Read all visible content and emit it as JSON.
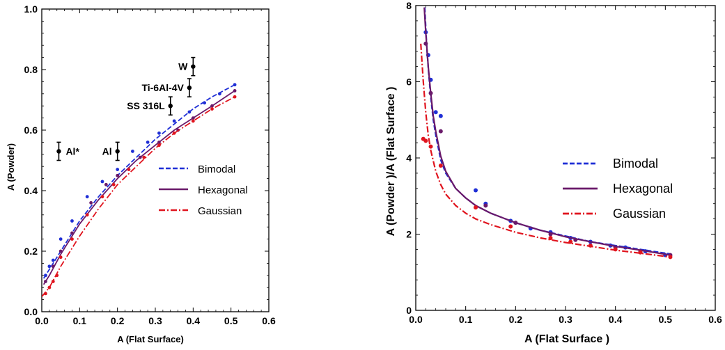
{
  "chart_data": [
    {
      "type": "scatter",
      "title": "",
      "xlabel": "A (Flat Surface)",
      "ylabel": "A (Powder)",
      "xlim": [
        0.0,
        0.6
      ],
      "ylim": [
        0.0,
        1.0
      ],
      "xticks": [
        "0.0",
        "0.1",
        "0.2",
        "0.3",
        "0.4",
        "0.5",
        "0.6"
      ],
      "yticks": [
        "0.0",
        "0.2",
        "0.4",
        "0.6",
        "0.8",
        "1.0"
      ],
      "legend_position": "center-right",
      "series": [
        {
          "name": "Bimodal",
          "color": "#1f2fd6",
          "style": "dashed",
          "curve": {
            "x": [
              0.005,
              0.02,
              0.05,
              0.1,
              0.15,
              0.2,
              0.25,
              0.3,
              0.35,
              0.4,
              0.45,
              0.51
            ],
            "y": [
              0.11,
              0.14,
              0.2,
              0.3,
              0.38,
              0.45,
              0.51,
              0.57,
              0.62,
              0.67,
              0.71,
              0.75
            ]
          },
          "points": {
            "x": [
              0.01,
              0.02,
              0.03,
              0.05,
              0.08,
              0.12,
              0.16,
              0.2,
              0.24,
              0.28,
              0.31,
              0.35,
              0.39,
              0.43,
              0.47,
              0.51
            ],
            "y": [
              0.12,
              0.15,
              0.17,
              0.24,
              0.3,
              0.38,
              0.43,
              0.47,
              0.53,
              0.56,
              0.59,
              0.63,
              0.66,
              0.69,
              0.72,
              0.75
            ]
          }
        },
        {
          "name": "Hexagonal",
          "color": "#6a1a6a",
          "style": "solid",
          "curve": {
            "x": [
              0.005,
              0.02,
              0.05,
              0.1,
              0.15,
              0.2,
              0.25,
              0.3,
              0.35,
              0.4,
              0.45,
              0.51
            ],
            "y": [
              0.09,
              0.12,
              0.19,
              0.29,
              0.37,
              0.44,
              0.5,
              0.55,
              0.6,
              0.64,
              0.68,
              0.73
            ]
          },
          "points": {
            "x": [
              0.01,
              0.03,
              0.05,
              0.08,
              0.13,
              0.17,
              0.2,
              0.26,
              0.31,
              0.36,
              0.4,
              0.45,
              0.51
            ],
            "y": [
              0.1,
              0.15,
              0.2,
              0.26,
              0.36,
              0.42,
              0.45,
              0.51,
              0.56,
              0.6,
              0.64,
              0.68,
              0.73
            ]
          }
        },
        {
          "name": "Gaussian",
          "color": "#e0141e",
          "style": "dashdot",
          "curve": {
            "x": [
              0.0,
              0.02,
              0.05,
              0.1,
              0.15,
              0.2,
              0.25,
              0.3,
              0.35,
              0.4,
              0.45,
              0.51
            ],
            "y": [
              0.05,
              0.08,
              0.15,
              0.25,
              0.34,
              0.42,
              0.48,
              0.54,
              0.59,
              0.63,
              0.67,
              0.71
            ]
          },
          "points": {
            "x": [
              0.01,
              0.02,
              0.03,
              0.04,
              0.05,
              0.08,
              0.12,
              0.16,
              0.19,
              0.23,
              0.27,
              0.31,
              0.35,
              0.4,
              0.45,
              0.51
            ],
            "y": [
              0.06,
              0.08,
              0.1,
              0.12,
              0.18,
              0.24,
              0.32,
              0.38,
              0.42,
              0.47,
              0.51,
              0.55,
              0.59,
              0.63,
              0.67,
              0.71
            ]
          }
        }
      ],
      "error_points": [
        {
          "label": "Al*",
          "x": 0.045,
          "y": 0.53,
          "err": 0.03
        },
        {
          "label": "Al",
          "x": 0.2,
          "y": 0.53,
          "err": 0.03
        },
        {
          "label": "SS 316L",
          "x": 0.34,
          "y": 0.68,
          "err": 0.03
        },
        {
          "label": "Ti-6Al-4V",
          "x": 0.39,
          "y": 0.74,
          "err": 0.03
        },
        {
          "label": "W",
          "x": 0.4,
          "y": 0.81,
          "err": 0.03
        }
      ]
    },
    {
      "type": "scatter",
      "title": "",
      "xlabel": "A (Flat Surface )",
      "ylabel": "A (Powder )/A (Flat Surface )",
      "xlim": [
        0.0,
        0.6
      ],
      "ylim": [
        0,
        8
      ],
      "xticks": [
        "0.0",
        "0.1",
        "0.2",
        "0.3",
        "0.4",
        "0.5",
        "0.6"
      ],
      "yticks": [
        "0",
        "2",
        "4",
        "6",
        "8"
      ],
      "legend_position": "center-right",
      "series": [
        {
          "name": "Bimodal",
          "color": "#1f2fd6",
          "style": "dashed",
          "curve": {
            "x": [
              0.018,
              0.022,
              0.026,
              0.03,
              0.035,
              0.04,
              0.05,
              0.06,
              0.08,
              0.1,
              0.12,
              0.15,
              0.2,
              0.25,
              0.3,
              0.35,
              0.4,
              0.45,
              0.51
            ],
            "y": [
              7.95,
              6.9,
              6.2,
              5.6,
              5.0,
              4.6,
              3.95,
              3.6,
              3.2,
              2.95,
              2.75,
              2.55,
              2.3,
              2.1,
              1.95,
              1.8,
              1.7,
              1.6,
              1.48
            ]
          },
          "points": {
            "x": [
              0.02,
              0.025,
              0.03,
              0.04,
              0.05,
              0.12,
              0.14,
              0.19,
              0.23,
              0.27,
              0.31,
              0.35,
              0.39,
              0.42,
              0.46,
              0.5
            ],
            "y": [
              7.3,
              6.7,
              6.05,
              5.2,
              5.1,
              3.15,
              2.8,
              2.35,
              2.15,
              2.05,
              1.9,
              1.8,
              1.7,
              1.65,
              1.55,
              1.45
            ]
          }
        },
        {
          "name": "Hexagonal",
          "color": "#6a1a6a",
          "style": "solid",
          "curve": {
            "x": [
              0.017,
              0.02,
              0.025,
              0.03,
              0.035,
              0.04,
              0.05,
              0.06,
              0.08,
              0.1,
              0.12,
              0.15,
              0.2,
              0.25,
              0.3,
              0.35,
              0.4,
              0.45,
              0.51
            ],
            "y": [
              7.95,
              7.3,
              6.4,
              5.7,
              5.1,
              4.7,
              4.05,
              3.65,
              3.2,
              2.95,
              2.75,
              2.55,
              2.3,
              2.1,
              1.93,
              1.8,
              1.68,
              1.58,
              1.45
            ]
          },
          "points": {
            "x": [
              0.02,
              0.03,
              0.05,
              0.14,
              0.2,
              0.27,
              0.32,
              0.4,
              0.45,
              0.51
            ],
            "y": [
              7.0,
              5.7,
              4.7,
              2.75,
              2.3,
              2.0,
              1.85,
              1.65,
              1.55,
              1.45
            ]
          }
        },
        {
          "name": "Gaussian",
          "color": "#e0141e",
          "style": "dashdot",
          "curve": {
            "x": [
              0.01,
              0.015,
              0.02,
              0.025,
              0.03,
              0.04,
              0.05,
              0.06,
              0.08,
              0.1,
              0.12,
              0.15,
              0.2,
              0.25,
              0.3,
              0.35,
              0.4,
              0.45,
              0.51
            ],
            "y": [
              7.0,
              6.0,
              5.2,
              4.6,
              4.2,
              3.65,
              3.3,
              3.05,
              2.75,
              2.55,
              2.4,
              2.25,
              2.05,
              1.9,
              1.78,
              1.68,
              1.58,
              1.5,
              1.4
            ]
          },
          "points": {
            "x": [
              0.015,
              0.02,
              0.03,
              0.05,
              0.12,
              0.19,
              0.27,
              0.31,
              0.35,
              0.4,
              0.45,
              0.51
            ],
            "y": [
              4.5,
              4.45,
              4.3,
              3.8,
              2.7,
              2.2,
              1.9,
              1.8,
              1.7,
              1.6,
              1.52,
              1.4
            ]
          }
        }
      ]
    }
  ]
}
